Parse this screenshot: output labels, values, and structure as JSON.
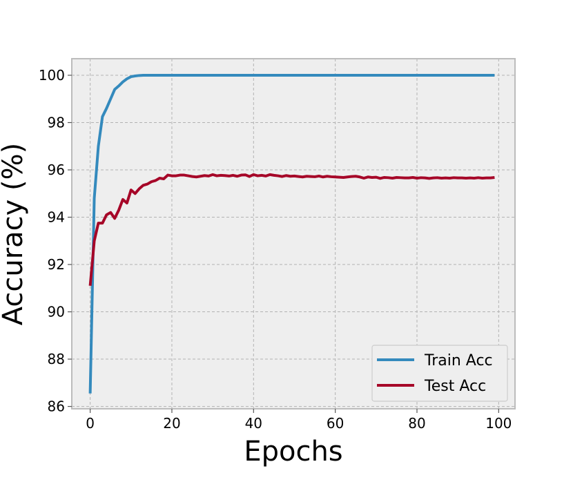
{
  "chart_data": {
    "type": "line",
    "title": "",
    "xlabel": "Epochs",
    "ylabel": "Accuracy (%)",
    "xlim": [
      -4.5,
      104
    ],
    "ylim": [
      85.9,
      100.7
    ],
    "xticks": [
      0,
      20,
      40,
      60,
      80,
      100
    ],
    "yticks": [
      86,
      88,
      90,
      92,
      94,
      96,
      98,
      100
    ],
    "grid": true,
    "legend_position": "lower right",
    "series": [
      {
        "name": "Train Acc",
        "color": "#348ABD",
        "x": [
          0,
          1,
          2,
          3,
          4,
          5,
          6,
          7,
          8,
          9,
          10,
          11,
          12,
          13,
          14,
          15,
          20,
          30,
          40,
          50,
          60,
          70,
          80,
          90,
          99
        ],
        "y": [
          86.55,
          94.8,
          97.0,
          98.25,
          98.6,
          99.0,
          99.4,
          99.55,
          99.72,
          99.85,
          99.94,
          99.97,
          99.99,
          100.0,
          100.0,
          100.0,
          100.0,
          100.0,
          100.0,
          100.0,
          100.0,
          100.0,
          100.0,
          100.0,
          100.0
        ]
      },
      {
        "name": "Test Acc",
        "color": "#A60628",
        "x": [
          0,
          1,
          2,
          3,
          4,
          5,
          6,
          7,
          8,
          9,
          10,
          11,
          12,
          13,
          14,
          15,
          16,
          17,
          18,
          19,
          20,
          21,
          22,
          23,
          24,
          25,
          26,
          27,
          28,
          29,
          30,
          31,
          32,
          33,
          34,
          35,
          36,
          37,
          38,
          39,
          40,
          41,
          42,
          43,
          44,
          45,
          46,
          47,
          48,
          49,
          50,
          51,
          52,
          53,
          54,
          55,
          56,
          57,
          58,
          59,
          60,
          61,
          62,
          63,
          64,
          65,
          66,
          67,
          68,
          69,
          70,
          71,
          72,
          73,
          74,
          75,
          76,
          77,
          78,
          79,
          80,
          81,
          82,
          83,
          84,
          85,
          86,
          87,
          88,
          89,
          90,
          91,
          92,
          93,
          94,
          95,
          96,
          97,
          98,
          99
        ],
        "y": [
          91.1,
          93.0,
          93.75,
          93.75,
          94.1,
          94.2,
          93.95,
          94.3,
          94.75,
          94.6,
          95.15,
          95.0,
          95.2,
          95.35,
          95.4,
          95.5,
          95.55,
          95.65,
          95.62,
          95.78,
          95.75,
          95.75,
          95.78,
          95.78,
          95.75,
          95.72,
          95.7,
          95.73,
          95.76,
          95.74,
          95.8,
          95.75,
          95.77,
          95.76,
          95.74,
          95.77,
          95.73,
          95.78,
          95.79,
          95.72,
          95.8,
          95.75,
          95.77,
          95.74,
          95.8,
          95.77,
          95.75,
          95.72,
          95.76,
          95.73,
          95.74,
          95.72,
          95.7,
          95.73,
          95.72,
          95.71,
          95.74,
          95.7,
          95.73,
          95.71,
          95.7,
          95.69,
          95.68,
          95.7,
          95.72,
          95.73,
          95.7,
          95.65,
          95.7,
          95.68,
          95.69,
          95.64,
          95.68,
          95.67,
          95.65,
          95.68,
          95.67,
          95.66,
          95.66,
          95.68,
          95.65,
          95.67,
          95.66,
          95.64,
          95.66,
          95.67,
          95.65,
          95.66,
          95.65,
          95.67,
          95.66,
          95.66,
          95.65,
          95.66,
          95.65,
          95.67,
          95.65,
          95.66,
          95.66,
          95.68
        ]
      }
    ]
  }
}
